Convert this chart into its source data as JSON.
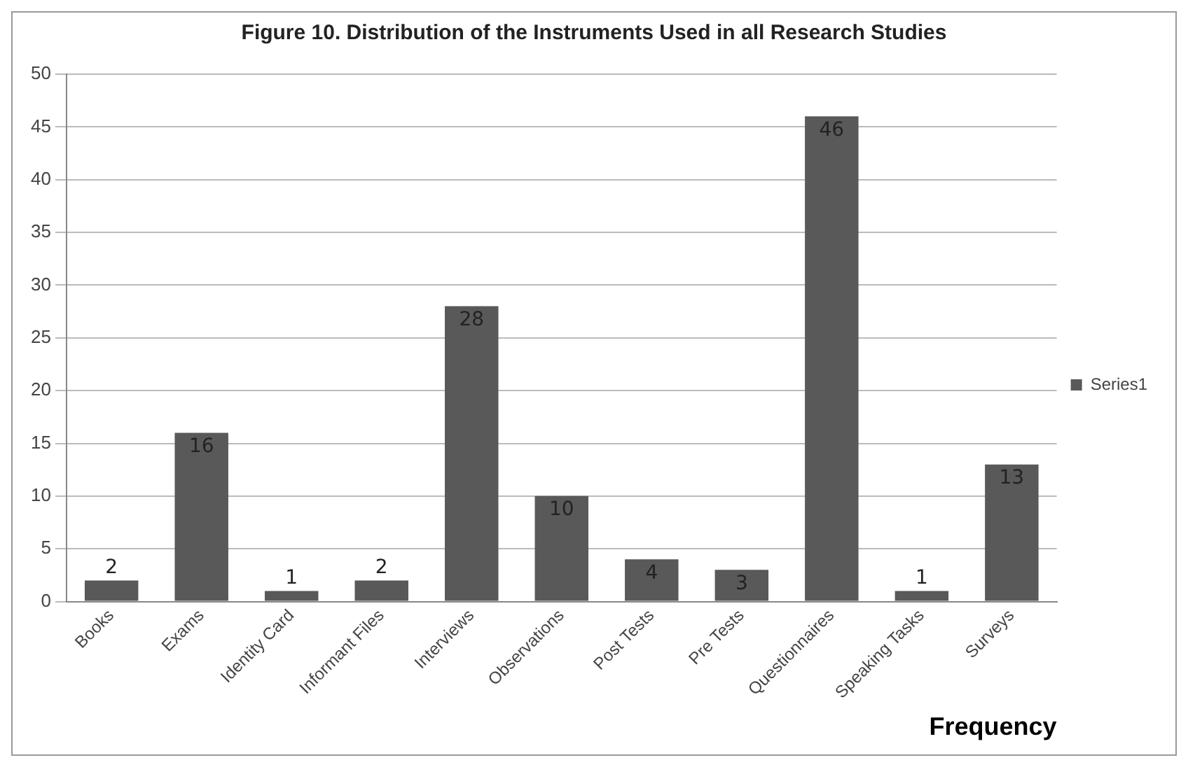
{
  "chart_data": {
    "type": "bar",
    "title": "Figure 10. Distribution of the Instruments Used in all Research Studies",
    "xlabel": "Frequency",
    "categories": [
      "Books",
      "Exams",
      "Identity Card",
      "Informant Files",
      "Interviews",
      "Observations",
      "Post Tests",
      "Pre Tests",
      "Questionnaires",
      "Speaking Tasks",
      "Surveys"
    ],
    "series": [
      {
        "name": "Series1",
        "color": "#595959",
        "values": [
          2,
          16,
          1,
          2,
          28,
          10,
          4,
          3,
          46,
          1,
          13
        ]
      }
    ],
    "ylim": [
      0,
      50
    ],
    "yticks": [
      0,
      5,
      10,
      15,
      20,
      25,
      30,
      35,
      40,
      45,
      50
    ],
    "grid": "y",
    "legend": "right",
    "data_labels": true
  }
}
